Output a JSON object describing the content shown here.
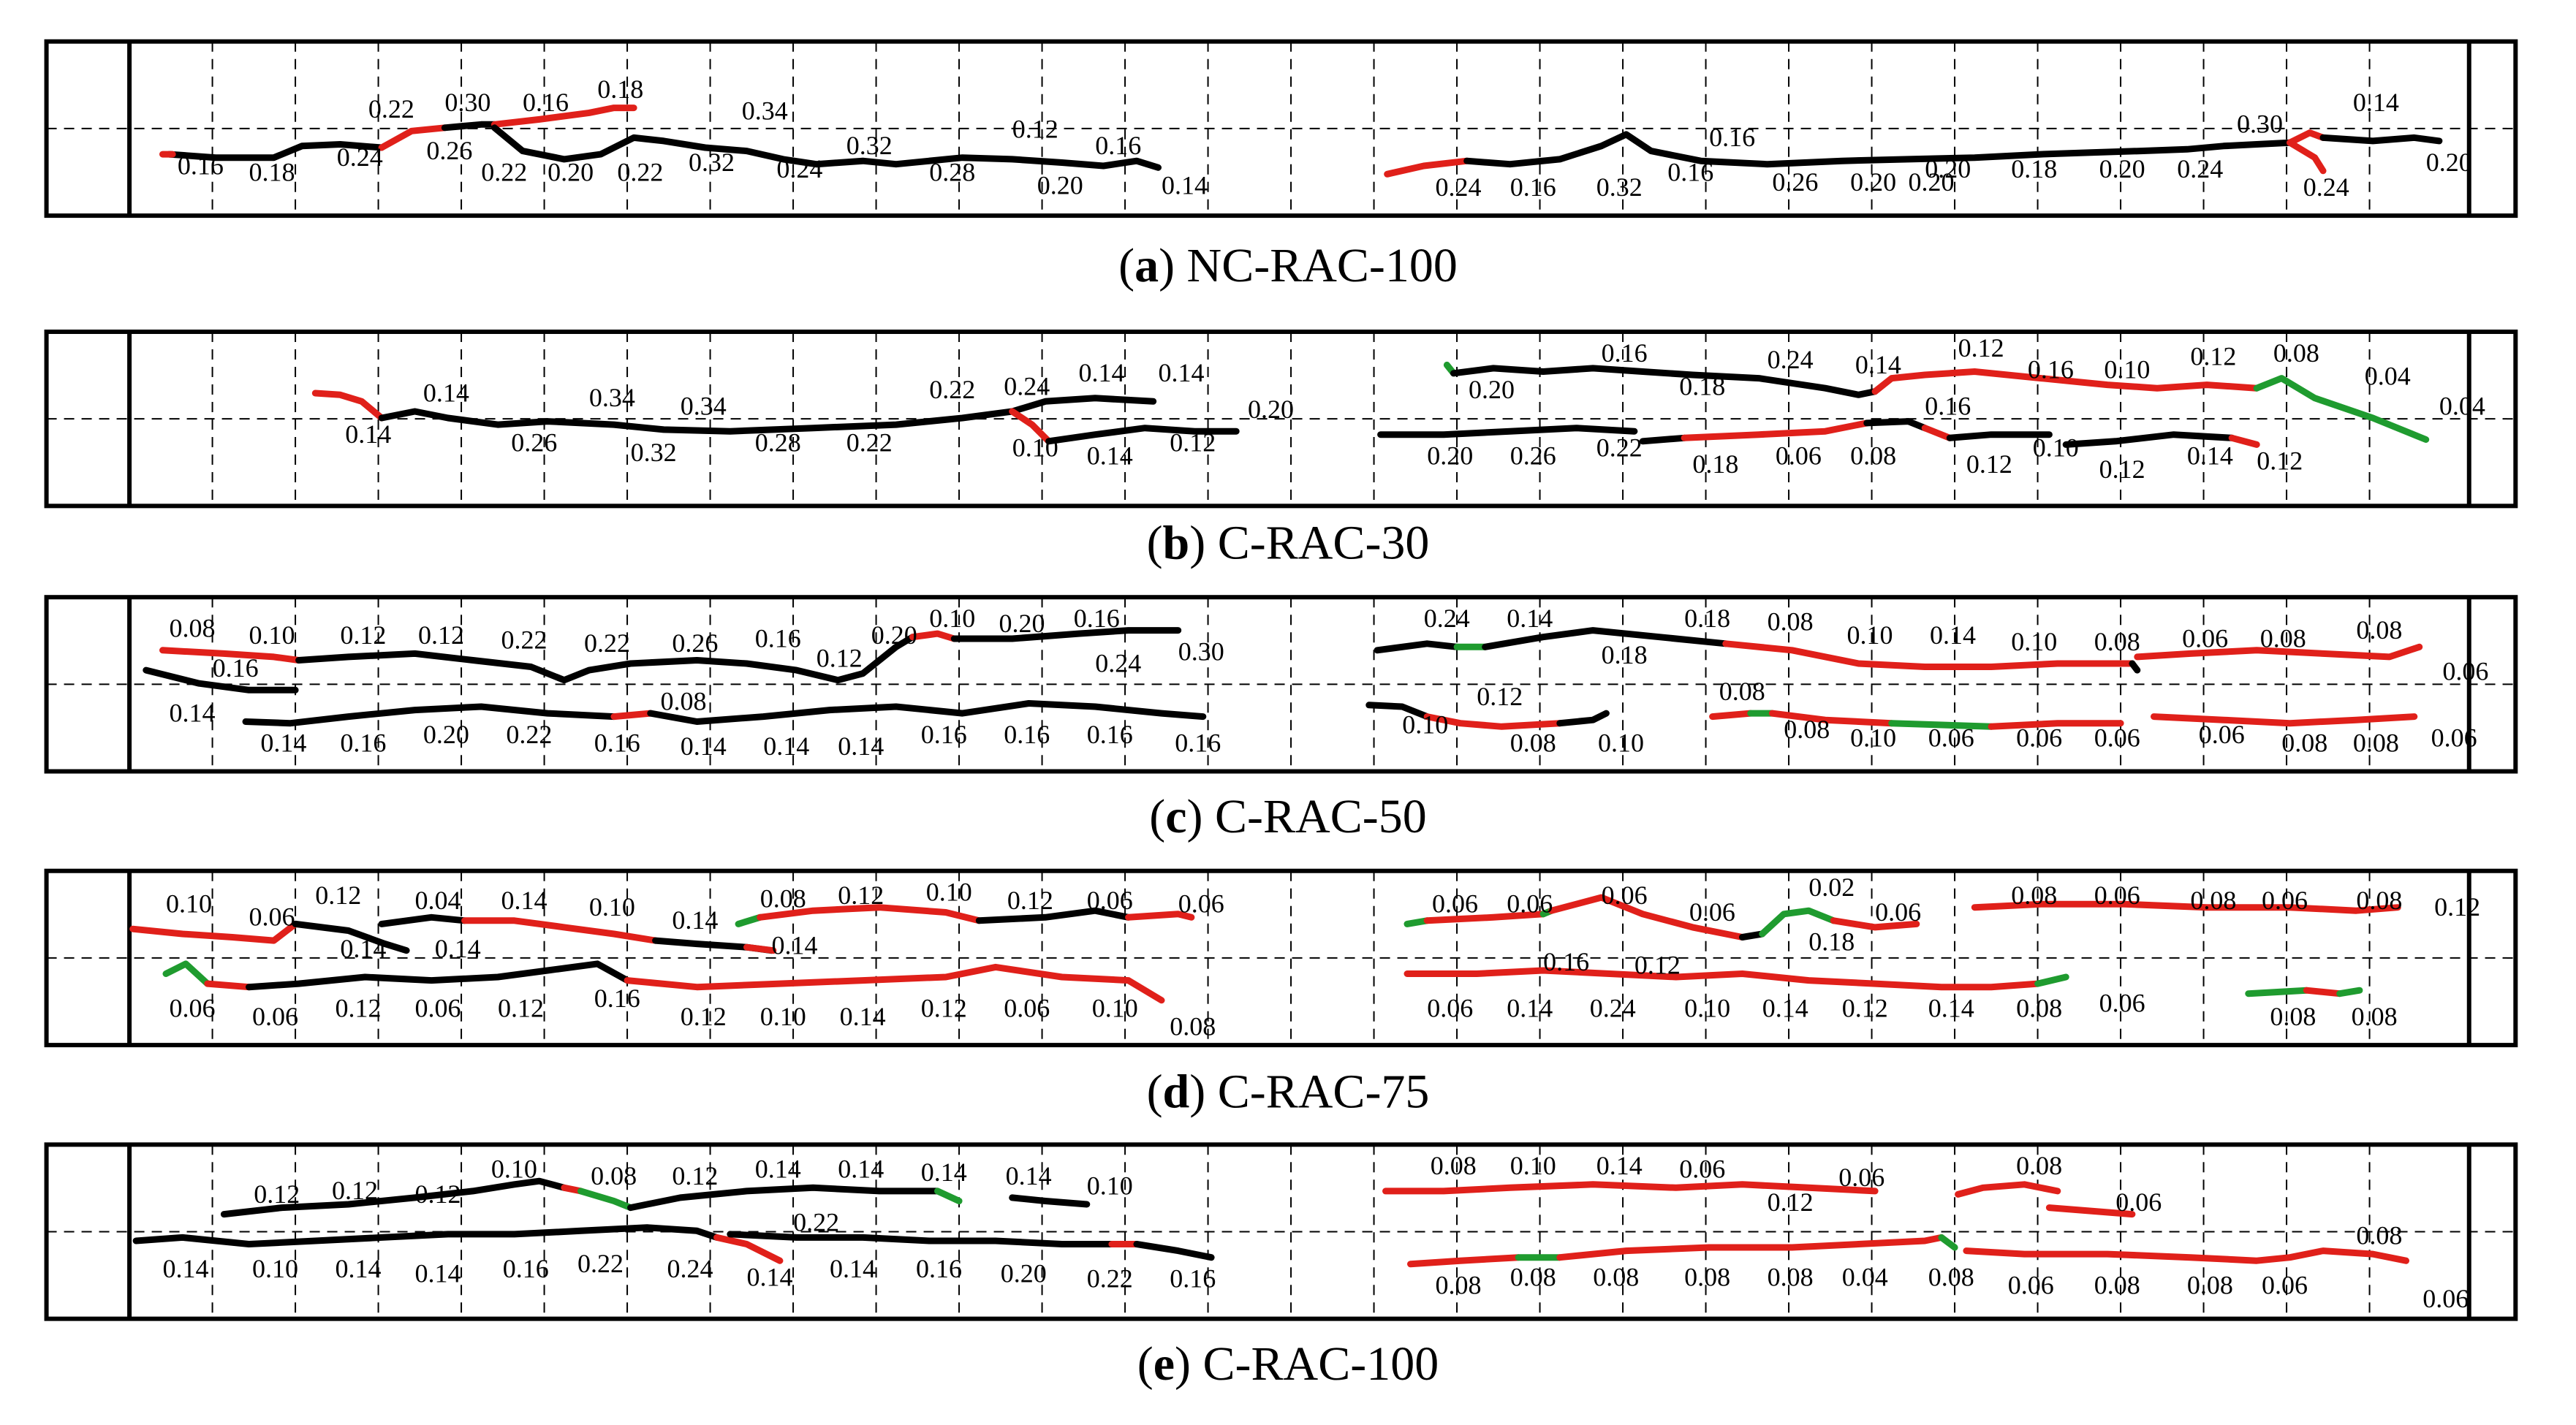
{
  "colors": {
    "black": "#000000",
    "red": "#e0201a",
    "green": "#1f9b2f"
  },
  "panels": [
    {
      "letter": "a",
      "name": " NC-RAC-100",
      "labels": [
        "0.16",
        "0.18",
        "0.24",
        "0.22",
        "0.26",
        "0.30",
        "0.16",
        "0.18",
        "0.22",
        "0.20",
        "0.22",
        "0.32",
        "0.34",
        "0.24",
        "0.32",
        "0.28",
        "0.12",
        "0.20",
        "0.16",
        "0.14",
        "0.24",
        "0.16",
        "0.32",
        "0.16",
        "0.16",
        "0.26",
        "0.20",
        "0.20",
        "0.18",
        "0.20",
        "0.24",
        "0.30",
        "0.24",
        "0.14",
        "0.20",
        "0.20"
      ]
    },
    {
      "letter": "b",
      "name": " C-RAC-30",
      "labels": [
        "0.14",
        "0.14",
        "0.26",
        "0.34",
        "0.32",
        "0.34",
        "0.28",
        "0.22",
        "0.22",
        "0.24",
        "0.10",
        "0.14",
        "0.14",
        "0.14",
        "0.12",
        "0.20",
        "0.20",
        "0.16",
        "0.18",
        "0.24",
        "0.14",
        "0.12",
        "0.16",
        "0.10",
        "0.12",
        "0.08",
        "0.04",
        "0.04",
        "0.20",
        "0.26",
        "0.22",
        "0.18",
        "0.06",
        "0.08",
        "0.16",
        "0.12",
        "0.10",
        "0.12",
        "0.14",
        "0.12"
      ]
    },
    {
      "letter": "c",
      "name": " C-RAC-50",
      "labels": [
        "0.08",
        "0.10",
        "0.12",
        "0.12",
        "0.22",
        "0.22",
        "0.26",
        "0.16",
        "0.12",
        "0.20",
        "0.10",
        "0.20",
        "0.16",
        "0.24",
        "0.30",
        "0.16",
        "0.14",
        "0.14",
        "0.16",
        "0.20",
        "0.22",
        "0.16",
        "0.08",
        "0.14",
        "0.14",
        "0.14",
        "0.16",
        "0.16",
        "0.16",
        "0.16",
        "0.24",
        "0.14",
        "0.18",
        "0.18",
        "0.08",
        "0.10",
        "0.14",
        "0.10",
        "0.08",
        "0.06",
        "0.08",
        "0.08",
        "0.06",
        "0.10",
        "0.12",
        "0.08",
        "0.10",
        "0.08",
        "0.08",
        "0.10",
        "0.06",
        "0.06",
        "0.06",
        "0.06",
        "0.08",
        "0.08",
        "0.06"
      ]
    },
    {
      "letter": "d",
      "name": " C-RAC-75",
      "labels": [
        "0.10",
        "0.06",
        "0.12",
        "0.14",
        "0.04",
        "0.14",
        "0.14",
        "0.10",
        "0.14",
        "0.14",
        "0.08",
        "0.12",
        "0.10",
        "0.12",
        "0.06",
        "0.06",
        "0.06",
        "0.06",
        "0.12",
        "0.06",
        "0.12",
        "0.16",
        "0.12",
        "0.10",
        "0.14",
        "0.12",
        "0.06",
        "0.10",
        "0.08",
        "0.06",
        "0.06",
        "0.06",
        "0.06",
        "0.02",
        "0.18",
        "0.06",
        "0.08",
        "0.06",
        "0.08",
        "0.06",
        "0.08",
        "0.12",
        "0.16",
        "0.12",
        "0.06",
        "0.14",
        "0.24",
        "0.10",
        "0.14",
        "0.12",
        "0.14",
        "0.08",
        "0.06",
        "0.08",
        "0.08"
      ]
    },
    {
      "letter": "e",
      "name": " C-RAC-100",
      "labels": [
        "0.12",
        "0.12",
        "0.12",
        "0.10",
        "0.08",
        "0.12",
        "0.14",
        "0.14",
        "0.14",
        "0.14",
        "0.10",
        "0.22",
        "0.14",
        "0.10",
        "0.14",
        "0.14",
        "0.16",
        "0.22",
        "0.24",
        "0.14",
        "0.14",
        "0.16",
        "0.20",
        "0.22",
        "0.16",
        "0.08",
        "0.10",
        "0.14",
        "0.06",
        "0.12",
        "0.06",
        "0.08",
        "0.06",
        "0.08",
        "0.08",
        "0.08",
        "0.08",
        "0.08",
        "0.04",
        "0.08",
        "0.06",
        "0.08",
        "0.08",
        "0.06",
        "0.08",
        "0.06"
      ]
    }
  ]
}
